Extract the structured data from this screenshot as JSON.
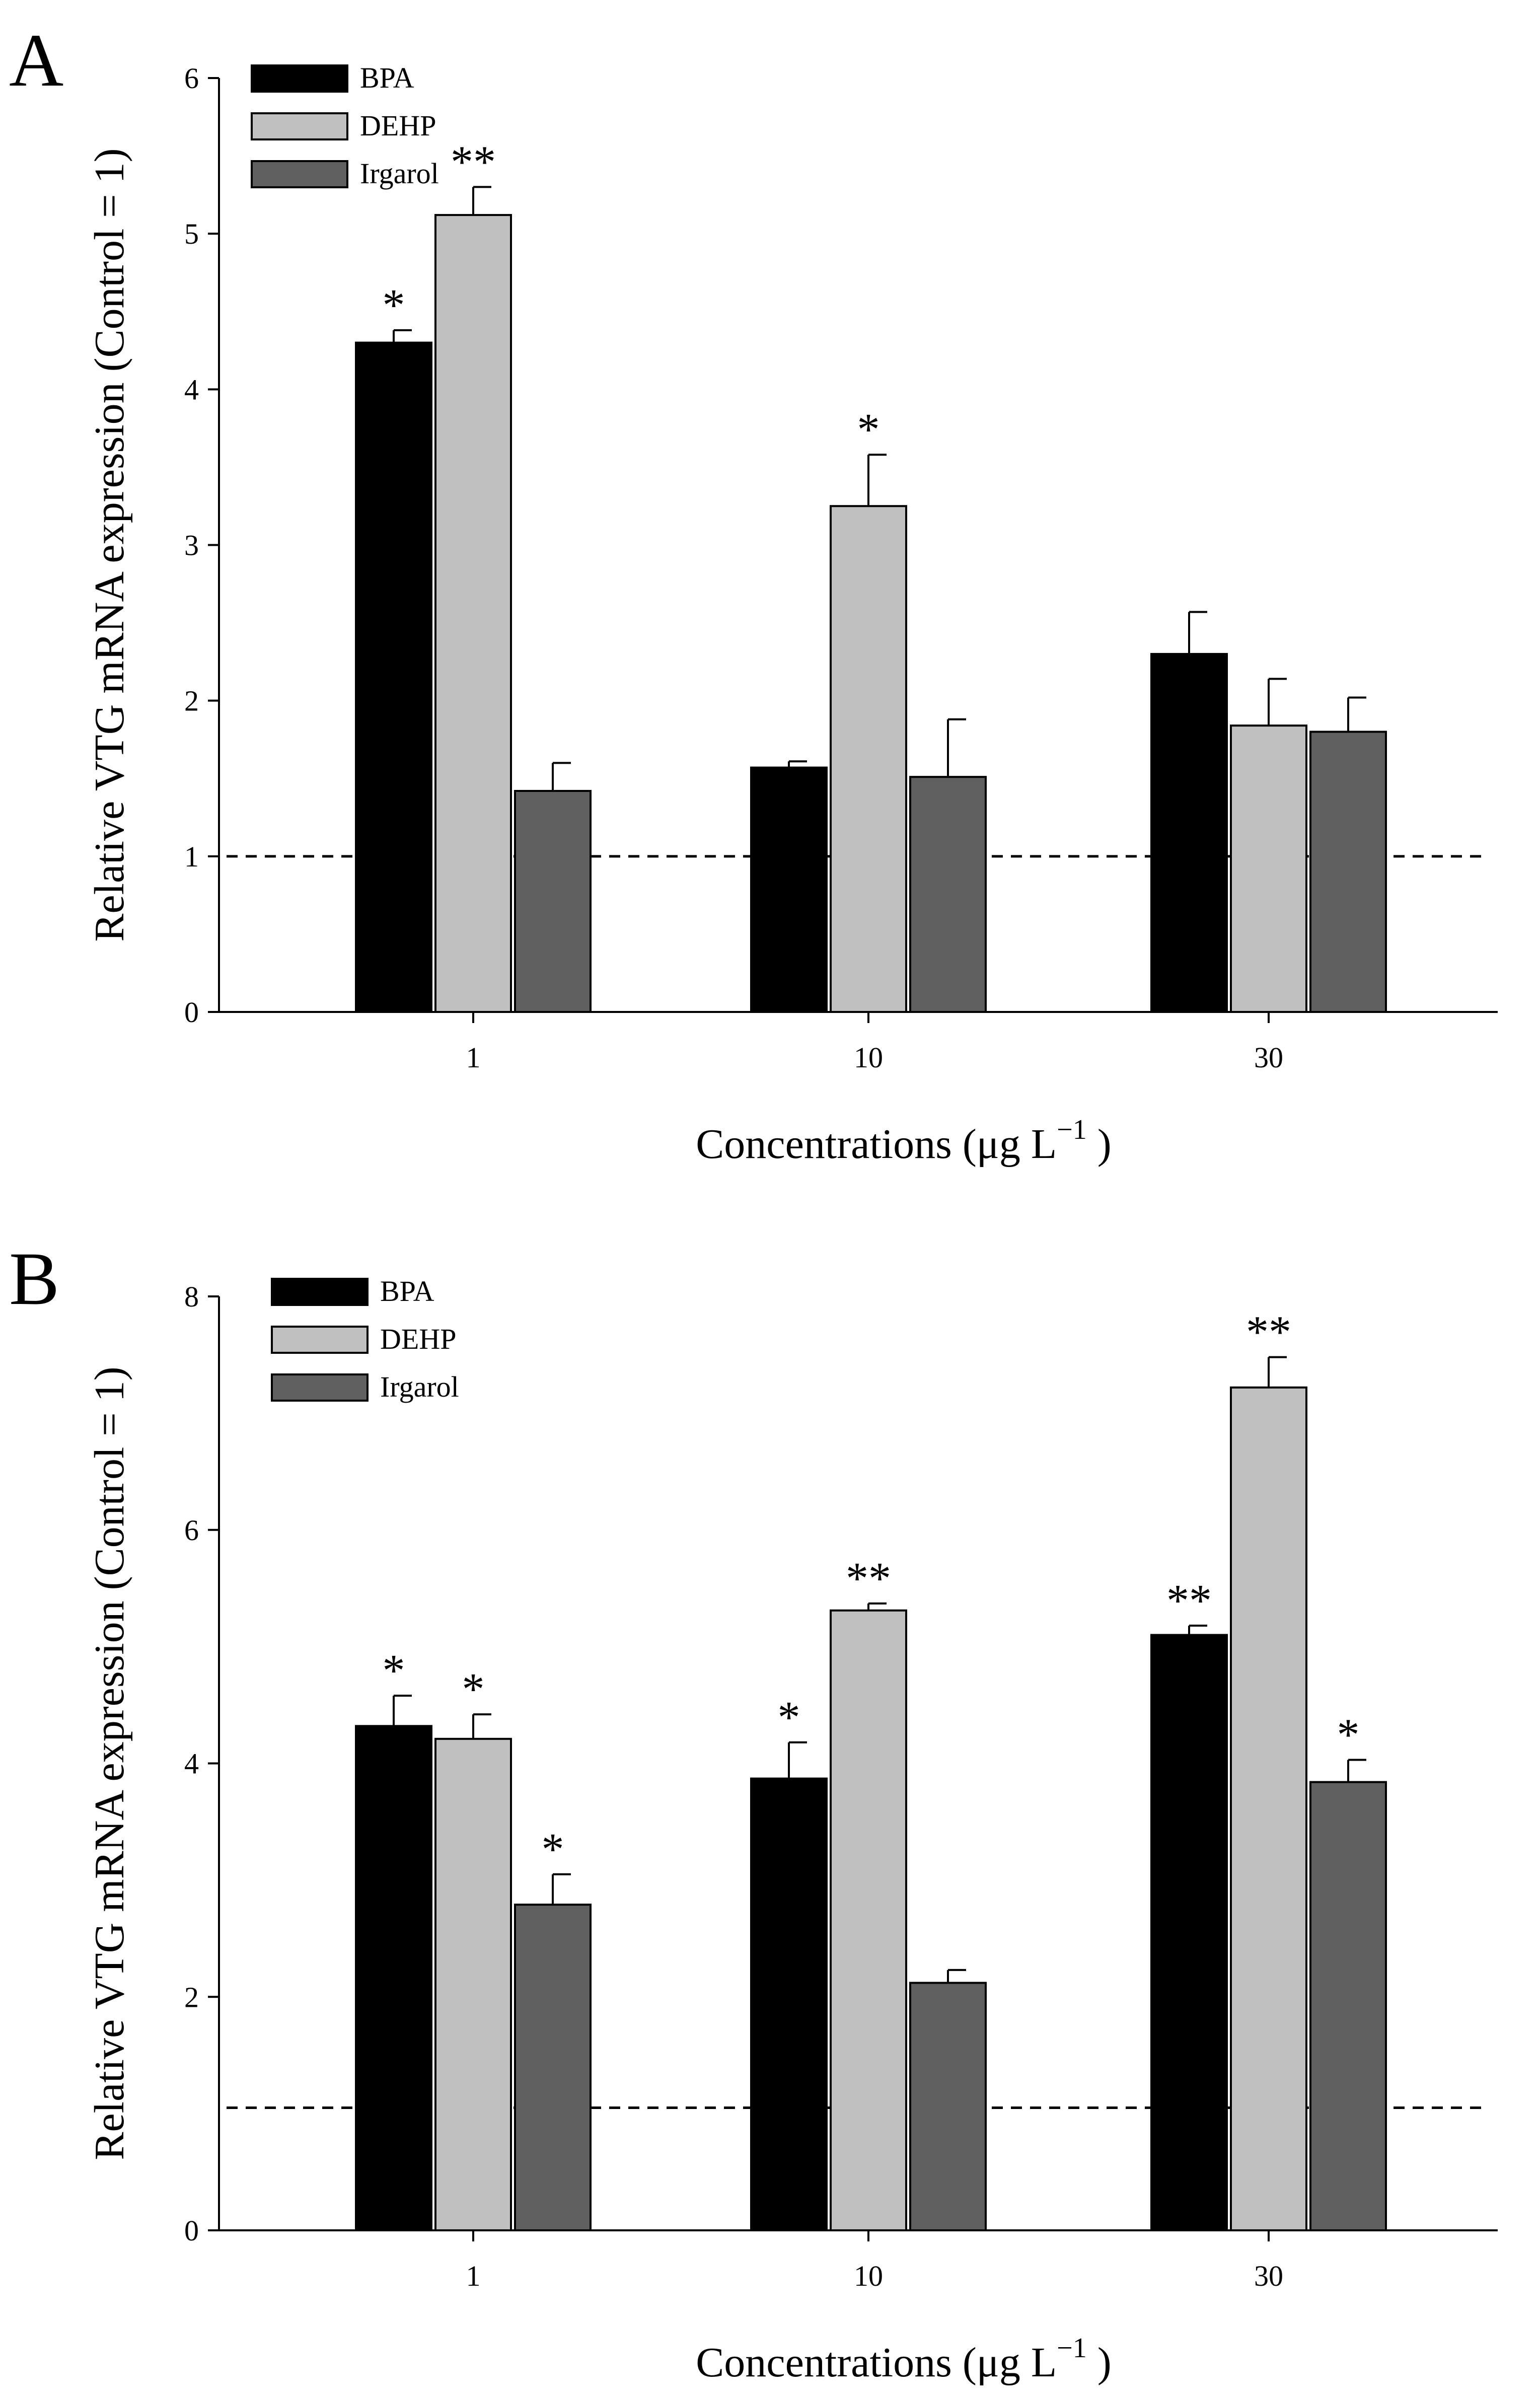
{
  "figure": {
    "panels": [
      "A",
      "B"
    ],
    "xlabel_main": "Concentrations (μg L",
    "xlabel_sup": "−1",
    "xlabel_end": " )"
  },
  "chart_data": [
    {
      "type": "bar",
      "panel": "A",
      "categories": [
        "1",
        "10",
        "30"
      ],
      "ylabel": "Relative VTG mRNA expression (Control = 1)",
      "xlabel": "Concentrations (μg L−1 )",
      "ylim": [
        0,
        6
      ],
      "yticks": [
        0,
        1,
        2,
        3,
        4,
        5,
        6
      ],
      "reference_line": 1,
      "legend_position": "top-left",
      "series": [
        {
          "name": "BPA",
          "color": "#000000",
          "values": [
            4.3,
            1.57,
            2.3
          ],
          "errors": [
            0.08,
            0.04,
            0.27
          ],
          "sig": [
            "*",
            "",
            ""
          ]
        },
        {
          "name": "DEHP",
          "color": "#c0c0c0",
          "values": [
            5.12,
            3.25,
            1.84
          ],
          "errors": [
            0.18,
            0.33,
            0.3
          ],
          "sig": [
            "**",
            "*",
            ""
          ]
        },
        {
          "name": "Irgarol",
          "color": "#5f5f5f",
          "values": [
            1.42,
            1.51,
            1.8
          ],
          "errors": [
            0.18,
            0.37,
            0.22
          ],
          "sig": [
            "",
            "",
            ""
          ]
        }
      ]
    },
    {
      "type": "bar",
      "panel": "B",
      "categories": [
        "1",
        "10",
        "30"
      ],
      "ylabel": "Relative VTG mRNA expression (Control = 1)",
      "xlabel": "Concentrations (μg L−1 )",
      "ylim": [
        0,
        8
      ],
      "yticks": [
        0,
        2,
        4,
        6,
        8
      ],
      "reference_line": 1.05,
      "legend_position": "top-left",
      "series": [
        {
          "name": "BPA",
          "color": "#000000",
          "values": [
            4.32,
            3.87,
            5.1
          ],
          "errors": [
            0.26,
            0.31,
            0.08
          ],
          "sig": [
            "*",
            "*",
            "**"
          ]
        },
        {
          "name": "DEHP",
          "color": "#c0c0c0",
          "values": [
            4.21,
            5.31,
            7.22
          ],
          "errors": [
            0.21,
            0.06,
            0.26
          ],
          "sig": [
            "*",
            "**",
            "**"
          ]
        },
        {
          "name": "Irgarol",
          "color": "#5f5f5f",
          "values": [
            2.79,
            2.12,
            3.84
          ],
          "errors": [
            0.26,
            0.11,
            0.19
          ],
          "sig": [
            "*",
            "",
            "*"
          ]
        }
      ]
    }
  ]
}
